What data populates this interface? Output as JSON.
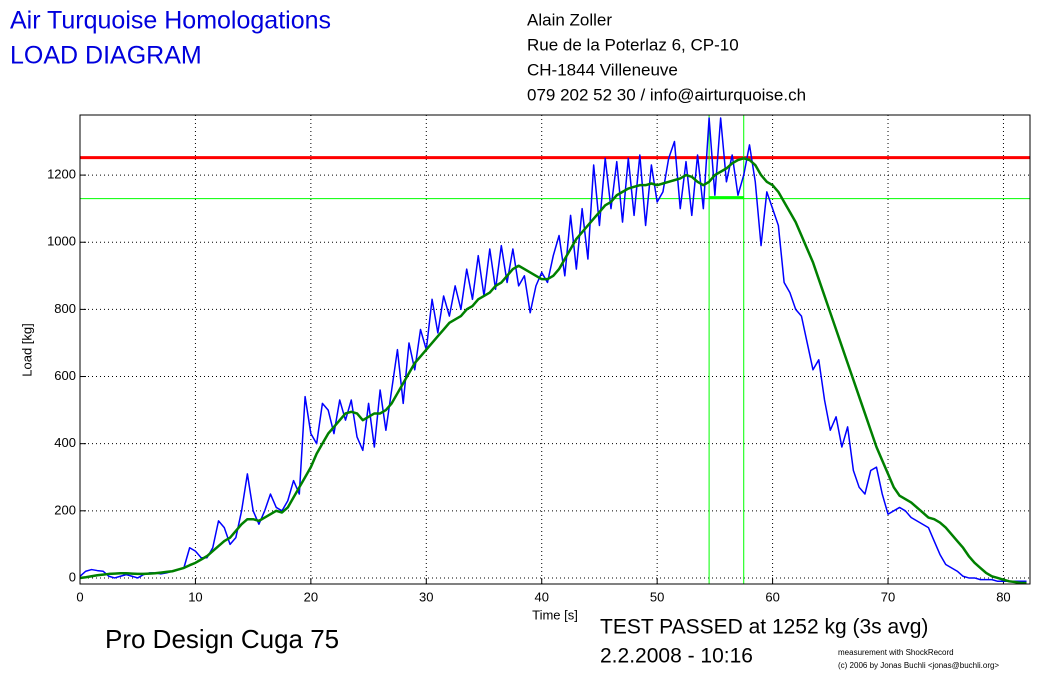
{
  "chart_data": {
    "type": "line",
    "title": [
      "Air Turquoise Homologations",
      "LOAD DIAGRAM"
    ],
    "address": [
      "Alain Zoller",
      "Rue de la Poterlaz 6, CP-10",
      "CH-1844 Villeneuve",
      "079 202 52 30 / info@airturquoise.ch"
    ],
    "ylabel": "Load [kg]",
    "xlabel": "Time [s]",
    "glider": "Pro Design Cuga 75",
    "result": [
      "TEST PASSED at 1252 kg (3s avg)",
      "2.2.2008 - 10:16"
    ],
    "credits": [
      "measurement with ShockRecord",
      "(c) 2006 by Jonas Buchli <jonas@buchli.org>"
    ],
    "xlim": [
      0,
      82.3
    ],
    "ylim": [
      -18,
      1379
    ],
    "xticks": [
      0,
      10,
      20,
      30,
      40,
      50,
      60,
      70,
      80
    ],
    "yticks": [
      0,
      200,
      400,
      600,
      800,
      1000,
      1200
    ],
    "grid": true,
    "hlines": [
      {
        "value": 1252,
        "color": "#ff0000"
      },
      {
        "value": 1130,
        "color": "#00ff00"
      }
    ],
    "vlines": [
      {
        "value": 54.5,
        "color": "#00ff00"
      },
      {
        "value": 57.5,
        "color": "#00ff00"
      }
    ],
    "avg_segment": {
      "x": [
        54.5,
        57.5
      ],
      "y": 1133,
      "color": "#00ff00"
    },
    "x": [
      0,
      0.5,
      1,
      1.5,
      2,
      2.5,
      3,
      3.5,
      4,
      4.5,
      5,
      5.5,
      6,
      6.5,
      7,
      7.5,
      8,
      8.5,
      9,
      9.5,
      10,
      10.5,
      11,
      11.5,
      12,
      12.5,
      13,
      13.5,
      14,
      14.5,
      15,
      15.5,
      16,
      16.5,
      17,
      17.5,
      18,
      18.5,
      19,
      19.5,
      20,
      20.5,
      21,
      21.5,
      22,
      22.5,
      23,
      23.5,
      24,
      24.5,
      25,
      25.5,
      26,
      26.5,
      27,
      27.5,
      28,
      28.5,
      29,
      29.5,
      30,
      30.5,
      31,
      31.5,
      32,
      32.5,
      33,
      33.5,
      34,
      34.5,
      35,
      35.5,
      36,
      36.5,
      37,
      37.5,
      38,
      38.5,
      39,
      39.5,
      40,
      40.5,
      41,
      41.5,
      42,
      42.5,
      43,
      43.5,
      44,
      44.5,
      45,
      45.5,
      46,
      46.5,
      47,
      47.5,
      48,
      48.5,
      49,
      49.5,
      50,
      50.5,
      51,
      51.5,
      52,
      52.5,
      53,
      53.5,
      54,
      54.5,
      55,
      55.5,
      56,
      56.5,
      57,
      57.5,
      58,
      58.5,
      59,
      59.5,
      60,
      60.5,
      61,
      61.5,
      62,
      62.5,
      63,
      63.5,
      64,
      64.5,
      65,
      65.5,
      66,
      66.5,
      67,
      67.5,
      68,
      68.5,
      69,
      69.5,
      70,
      70.5,
      71,
      71.5,
      72,
      72.5,
      73,
      73.5,
      74,
      74.5,
      75,
      75.5,
      76,
      76.5,
      77,
      77.5,
      78,
      78.5,
      79,
      79.5,
      80,
      80.5,
      81,
      81.5,
      82
    ],
    "series": [
      {
        "color": "#0000ff",
        "width": 1.5,
        "values": [
          5,
          20,
          25,
          22,
          20,
          5,
          0,
          5,
          10,
          5,
          0,
          10,
          15,
          15,
          12,
          15,
          20,
          25,
          30,
          90,
          80,
          60,
          60,
          90,
          170,
          150,
          100,
          120,
          200,
          310,
          200,
          160,
          200,
          250,
          210,
          200,
          230,
          290,
          250,
          540,
          430,
          400,
          520,
          500,
          430,
          530,
          470,
          530,
          420,
          380,
          520,
          390,
          560,
          440,
          560,
          680,
          520,
          700,
          620,
          740,
          680,
          830,
          730,
          840,
          780,
          870,
          800,
          920,
          830,
          960,
          840,
          980,
          860,
          990,
          880,
          980,
          870,
          900,
          790,
          870,
          910,
          880,
          960,
          1020,
          900,
          1080,
          920,
          1100,
          950,
          1230,
          1050,
          1250,
          1100,
          1240,
          1060,
          1250,
          1080,
          1260,
          1050,
          1230,
          1120,
          1150,
          1250,
          1300,
          1100,
          1240,
          1080,
          1260,
          1100,
          1370,
          1140,
          1370,
          1180,
          1260,
          1140,
          1200,
          1290,
          1180,
          990,
          1150,
          1100,
          1050,
          880,
          850,
          800,
          780,
          700,
          620,
          650,
          530,
          440,
          480,
          390,
          450,
          320,
          270,
          250,
          320,
          330,
          250,
          190,
          200,
          210,
          200,
          180,
          170,
          160,
          150,
          110,
          70,
          40,
          30,
          20,
          5,
          0,
          0,
          -5,
          -5,
          -5,
          -10,
          -10,
          -10,
          -10,
          -10,
          -10
        ]
      },
      {
        "color": "#008000",
        "width": 2.5,
        "values": [
          0,
          2,
          5,
          8,
          10,
          12,
          13,
          14,
          14,
          13,
          12,
          12,
          13,
          14,
          16,
          18,
          20,
          25,
          30,
          38,
          45,
          55,
          65,
          80,
          95,
          110,
          120,
          140,
          160,
          175,
          175,
          170,
          180,
          190,
          200,
          195,
          210,
          240,
          270,
          300,
          330,
          370,
          400,
          430,
          450,
          470,
          490,
          495,
          490,
          470,
          480,
          490,
          490,
          500,
          520,
          550,
          580,
          610,
          640,
          660,
          680,
          700,
          720,
          740,
          760,
          770,
          780,
          800,
          810,
          830,
          840,
          850,
          870,
          880,
          900,
          920,
          930,
          920,
          910,
          900,
          890,
          890,
          900,
          920,
          950,
          980,
          1010,
          1030,
          1050,
          1070,
          1090,
          1110,
          1120,
          1140,
          1150,
          1160,
          1165,
          1170,
          1170,
          1175,
          1170,
          1175,
          1180,
          1185,
          1190,
          1200,
          1195,
          1180,
          1170,
          1180,
          1200,
          1210,
          1220,
          1235,
          1245,
          1250,
          1245,
          1230,
          1200,
          1180,
          1170,
          1150,
          1120,
          1090,
          1060,
          1020,
          980,
          940,
          890,
          840,
          790,
          740,
          690,
          640,
          590,
          540,
          490,
          440,
          390,
          350,
          310,
          270,
          245,
          235,
          225,
          210,
          195,
          180,
          175,
          165,
          150,
          130,
          110,
          90,
          65,
          45,
          30,
          15,
          5,
          0,
          -5,
          -10,
          -12,
          -15,
          -15
        ]
      }
    ]
  }
}
